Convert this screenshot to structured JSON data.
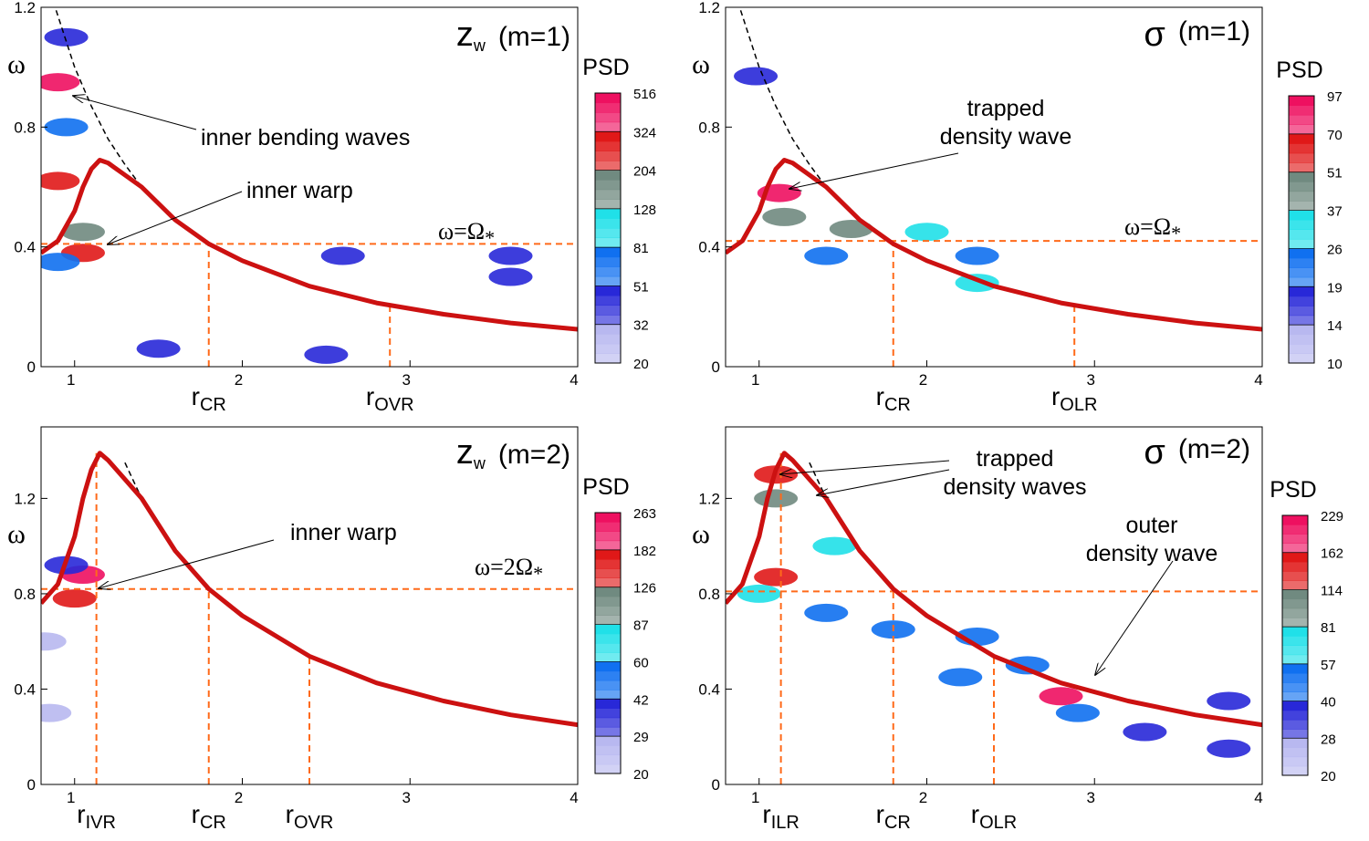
{
  "chart_data": [
    {
      "type": "contour",
      "label": {
        "main": "z",
        "sub": "w",
        "rest": "(m=1)"
      },
      "y_label": "ω",
      "colorbar_title": "PSD",
      "xlim": [
        0.8,
        4
      ],
      "ylim": [
        0,
        1.2
      ],
      "xticks": [
        1,
        2,
        3,
        4
      ],
      "yticks": [
        0,
        0.4,
        0.8,
        1.2
      ],
      "levels": [
        516,
        324,
        204,
        128,
        81,
        51,
        32,
        20
      ],
      "colormap": [
        "#ee1060",
        "#e01818",
        "#708a80",
        "#20e0e8",
        "#1070f0",
        "#2828d8",
        "#b8b8f0"
      ],
      "curve_color": "#cc1111",
      "dashed_color": "#000000",
      "resonance_color": "#ff6a1a",
      "curve": {
        "x": [
          0.8,
          0.9,
          1.0,
          1.05,
          1.1,
          1.15,
          1.2,
          1.3,
          1.4,
          1.6,
          1.8,
          2.0,
          2.4,
          2.8,
          3.2,
          3.6,
          4.0
        ],
        "y": [
          0.38,
          0.42,
          0.52,
          0.6,
          0.66,
          0.69,
          0.68,
          0.64,
          0.6,
          0.49,
          0.41,
          0.354,
          0.269,
          0.213,
          0.175,
          0.146,
          0.125
        ]
      },
      "dashed": {
        "x": [
          0.89,
          1.0,
          1.1,
          1.2,
          1.3,
          1.4
        ],
        "y": [
          1.19,
          1.0,
          0.87,
          0.76,
          0.675,
          0.6
        ]
      },
      "pattern_line": {
        "y": 0.41,
        "main": "ω=Ω",
        "sub": "*"
      },
      "resonances": [
        {
          "main": "r",
          "sub": "CR",
          "x": 1.8,
          "top": 0.41
        },
        {
          "main": "r",
          "sub": "OVR",
          "x": 2.88,
          "top": 0.2
        }
      ],
      "annotations": [
        {
          "lines": [
            "inner bending waves"
          ]
        },
        {
          "lines": [
            "inner warp"
          ]
        }
      ],
      "blobs": [
        {
          "x": 0.9,
          "y": 0.95,
          "psd": 400
        },
        {
          "x": 0.9,
          "y": 0.62,
          "psd": 300
        },
        {
          "x": 1.05,
          "y": 0.45,
          "psd": 150
        },
        {
          "x": 1.05,
          "y": 0.38,
          "psd": 300
        },
        {
          "x": 0.9,
          "y": 0.35,
          "psd": 60
        },
        {
          "x": 0.95,
          "y": 1.1,
          "psd": 40
        },
        {
          "x": 0.95,
          "y": 0.8,
          "psd": 80
        },
        {
          "x": 1.5,
          "y": 0.06,
          "psd": 50
        },
        {
          "x": 2.5,
          "y": 0.04,
          "psd": 40
        },
        {
          "x": 3.6,
          "y": 0.37,
          "psd": 40
        },
        {
          "x": 3.6,
          "y": 0.3,
          "psd": 35
        },
        {
          "x": 2.6,
          "y": 0.37,
          "psd": 35
        }
      ]
    },
    {
      "type": "contour",
      "label": {
        "main": "σ",
        "sub": "",
        "rest": "(m=1)"
      },
      "y_label": "ω",
      "colorbar_title": "PSD",
      "xlim": [
        0.8,
        4
      ],
      "ylim": [
        0,
        1.2
      ],
      "xticks": [
        1,
        2,
        3,
        4
      ],
      "yticks": [
        0,
        0.4,
        0.8,
        1.2
      ],
      "levels": [
        97,
        70,
        51,
        37,
        26,
        19,
        14,
        10
      ],
      "colormap": [
        "#ee1060",
        "#e01818",
        "#708a80",
        "#20e0e8",
        "#1070f0",
        "#2828d8",
        "#b8b8f0"
      ],
      "curve_color": "#cc1111",
      "dashed_color": "#000000",
      "resonance_color": "#ff6a1a",
      "curve": {
        "x": [
          0.8,
          0.9,
          1.0,
          1.05,
          1.1,
          1.15,
          1.2,
          1.3,
          1.4,
          1.6,
          1.8,
          2.0,
          2.4,
          2.8,
          3.2,
          3.6,
          4.0
        ],
        "y": [
          0.38,
          0.42,
          0.52,
          0.6,
          0.66,
          0.69,
          0.68,
          0.64,
          0.6,
          0.49,
          0.41,
          0.354,
          0.269,
          0.213,
          0.175,
          0.146,
          0.125
        ]
      },
      "dashed": {
        "x": [
          0.89,
          1.0,
          1.1,
          1.2,
          1.3,
          1.4
        ],
        "y": [
          1.19,
          1.0,
          0.87,
          0.76,
          0.675,
          0.6
        ]
      },
      "pattern_line": {
        "y": 0.42,
        "main": "ω=Ω",
        "sub": "*"
      },
      "resonances": [
        {
          "main": "r",
          "sub": "CR",
          "x": 1.8,
          "top": 0.41
        },
        {
          "main": "r",
          "sub": "OLR",
          "x": 2.88,
          "top": 0.2
        }
      ],
      "annotations": [
        {
          "lines": [
            "trapped",
            "density wave"
          ]
        }
      ],
      "blobs": [
        {
          "x": 1.12,
          "y": 0.58,
          "psd": 75
        },
        {
          "x": 1.15,
          "y": 0.5,
          "psd": 45
        },
        {
          "x": 1.55,
          "y": 0.46,
          "psd": 40
        },
        {
          "x": 2.0,
          "y": 0.45,
          "psd": 30
        },
        {
          "x": 1.4,
          "y": 0.37,
          "psd": 25
        },
        {
          "x": 2.3,
          "y": 0.28,
          "psd": 35
        },
        {
          "x": 2.3,
          "y": 0.37,
          "psd": 20
        },
        {
          "x": 0.98,
          "y": 0.97,
          "psd": 15
        }
      ]
    },
    {
      "type": "contour",
      "label": {
        "main": "z",
        "sub": "w",
        "rest": "(m=2)"
      },
      "y_label": "ω",
      "colorbar_title": "PSD",
      "xlim": [
        0.8,
        4
      ],
      "ylim": [
        0,
        1.5
      ],
      "xticks": [
        1,
        2,
        3,
        4
      ],
      "yticks": [
        0,
        0.4,
        0.8,
        1.2
      ],
      "levels": [
        263,
        182,
        126,
        87,
        60,
        42,
        29,
        20
      ],
      "colormap": [
        "#ee1060",
        "#e01818",
        "#708a80",
        "#20e0e8",
        "#1070f0",
        "#2828d8",
        "#b8b8f0"
      ],
      "curve_color": "#cc1111",
      "dashed_color": "#000000",
      "resonance_color": "#ff6a1a",
      "curve": {
        "x": [
          0.8,
          0.9,
          1.0,
          1.05,
          1.1,
          1.15,
          1.2,
          1.3,
          1.4,
          1.6,
          1.8,
          2.0,
          2.4,
          2.8,
          3.2,
          3.6,
          4.0
        ],
        "y": [
          0.76,
          0.84,
          1.04,
          1.2,
          1.32,
          1.39,
          1.36,
          1.28,
          1.2,
          0.98,
          0.82,
          0.708,
          0.538,
          0.426,
          0.35,
          0.292,
          0.25
        ]
      },
      "dashed": {
        "x": [
          1.3,
          1.4,
          1.6,
          1.8
        ],
        "y": [
          1.35,
          1.2,
          0.98,
          0.83
        ]
      },
      "pattern_line": {
        "y": 0.82,
        "main": "ω=2Ω",
        "sub": "*"
      },
      "resonances": [
        {
          "main": "r",
          "sub": "IVR",
          "x": 1.13,
          "top": 1.39
        },
        {
          "main": "r",
          "sub": "CR",
          "x": 1.8,
          "top": 0.82
        },
        {
          "main": "r",
          "sub": "OVR",
          "x": 2.4,
          "top": 0.53
        }
      ],
      "annotations": [
        {
          "lines": [
            "inner warp"
          ]
        }
      ],
      "blobs": [
        {
          "x": 1.05,
          "y": 0.88,
          "psd": 200
        },
        {
          "x": 1.0,
          "y": 0.78,
          "psd": 150
        },
        {
          "x": 0.95,
          "y": 0.92,
          "psd": 40
        },
        {
          "x": 0.82,
          "y": 0.6,
          "psd": 25
        },
        {
          "x": 0.85,
          "y": 0.3,
          "psd": 25
        }
      ]
    },
    {
      "type": "contour",
      "label": {
        "main": "σ",
        "sub": "",
        "rest": "(m=2)"
      },
      "y_label": "ω",
      "colorbar_title": "PSD",
      "xlim": [
        0.8,
        4
      ],
      "ylim": [
        0,
        1.5
      ],
      "xticks": [
        1,
        2,
        3,
        4
      ],
      "yticks": [
        0,
        0.4,
        0.8,
        1.2
      ],
      "levels": [
        229,
        162,
        114,
        81,
        57,
        40,
        28,
        20
      ],
      "colormap": [
        "#ee1060",
        "#e01818",
        "#708a80",
        "#20e0e8",
        "#1070f0",
        "#2828d8",
        "#b8b8f0"
      ],
      "curve_color": "#cc1111",
      "dashed_color": "#000000",
      "resonance_color": "#ff6a1a",
      "curve": {
        "x": [
          0.8,
          0.9,
          1.0,
          1.05,
          1.1,
          1.15,
          1.2,
          1.3,
          1.4,
          1.6,
          1.8,
          2.0,
          2.4,
          2.8,
          3.2,
          3.6,
          4.0
        ],
        "y": [
          0.76,
          0.84,
          1.04,
          1.2,
          1.32,
          1.39,
          1.36,
          1.28,
          1.2,
          0.98,
          0.82,
          0.708,
          0.538,
          0.426,
          0.35,
          0.292,
          0.25
        ]
      },
      "dashed": {
        "x": [
          1.3,
          1.4,
          1.6,
          1.8
        ],
        "y": [
          1.35,
          1.2,
          0.98,
          0.83
        ]
      },
      "pattern_line": {
        "y": 0.81,
        "main": "",
        "sub": ""
      },
      "resonances": [
        {
          "main": "r",
          "sub": "ILR",
          "x": 1.13,
          "top": 1.39
        },
        {
          "main": "r",
          "sub": "CR",
          "x": 1.8,
          "top": 0.82
        },
        {
          "main": "r",
          "sub": "OLR",
          "x": 2.4,
          "top": 0.53
        }
      ],
      "annotations": [
        {
          "lines": [
            "trapped",
            "density waves"
          ]
        },
        {
          "lines": [
            "outer",
            "density wave"
          ]
        }
      ],
      "blobs": [
        {
          "x": 1.1,
          "y": 1.3,
          "psd": 150
        },
        {
          "x": 1.1,
          "y": 1.2,
          "psd": 100
        },
        {
          "x": 1.45,
          "y": 1.0,
          "psd": 60
        },
        {
          "x": 1.1,
          "y": 0.87,
          "psd": 150
        },
        {
          "x": 1.0,
          "y": 0.8,
          "psd": 60
        },
        {
          "x": 1.4,
          "y": 0.72,
          "psd": 40
        },
        {
          "x": 1.8,
          "y": 0.65,
          "psd": 40
        },
        {
          "x": 2.3,
          "y": 0.62,
          "psd": 40
        },
        {
          "x": 2.2,
          "y": 0.45,
          "psd": 45
        },
        {
          "x": 2.6,
          "y": 0.5,
          "psd": 40
        },
        {
          "x": 2.8,
          "y": 0.37,
          "psd": 220
        },
        {
          "x": 2.9,
          "y": 0.3,
          "psd": 45
        },
        {
          "x": 3.8,
          "y": 0.35,
          "psd": 35
        },
        {
          "x": 3.3,
          "y": 0.22,
          "psd": 35
        },
        {
          "x": 3.8,
          "y": 0.15,
          "psd": 30
        }
      ]
    }
  ]
}
